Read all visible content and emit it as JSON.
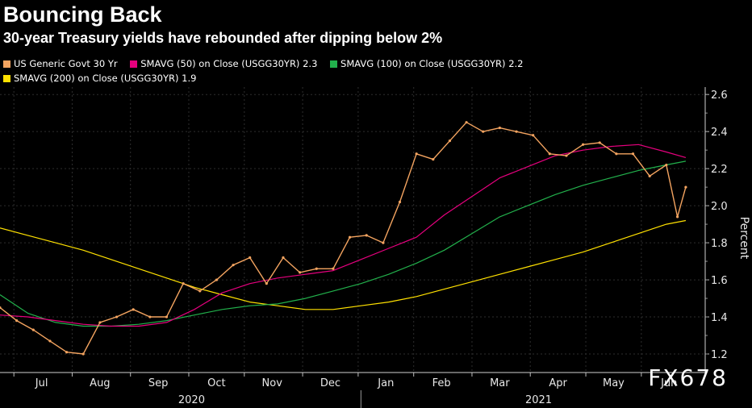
{
  "chart_data": {
    "type": "line",
    "title": "Bouncing Back",
    "subtitle": "30-year Treasury yields have rebounded after dipping below 2%",
    "ylabel": "Percent",
    "ylim": [
      1.1,
      2.64
    ],
    "yticks": [
      1.2,
      1.4,
      1.6,
      1.8,
      2.0,
      2.2,
      2.4,
      2.6
    ],
    "month_labels": [
      "Jul",
      "Aug",
      "Sep",
      "Oct",
      "Nov",
      "Dec",
      "Jan",
      "Feb",
      "Mar",
      "Apr",
      "May",
      "Jun"
    ],
    "month_index": [
      0.75,
      1.8,
      2.85,
      3.9,
      4.9,
      5.95,
      6.95,
      7.95,
      9.0,
      10.05,
      11.05,
      12.05
    ],
    "year_labels": [
      {
        "label": "2020",
        "x": 3.45
      },
      {
        "label": "2021",
        "x": 9.7
      }
    ],
    "year_divider_x": 6.5,
    "xlim": [
      0,
      12.7
    ],
    "series": [
      {
        "name": "US Generic Govt 30 Yr",
        "color": "#f4a460",
        "legend_value": "",
        "x": [
          0,
          0.3,
          0.6,
          0.9,
          1.2,
          1.5,
          1.8,
          2.1,
          2.4,
          2.7,
          3.0,
          3.3,
          3.6,
          3.9,
          4.2,
          4.5,
          4.8,
          5.1,
          5.4,
          5.7,
          6.0,
          6.3,
          6.6,
          6.9,
          7.2,
          7.5,
          7.8,
          8.1,
          8.4,
          8.7,
          9.0,
          9.3,
          9.6,
          9.9,
          10.2,
          10.5,
          10.8,
          11.1,
          11.4,
          11.7,
          12.0,
          12.2,
          12.35
        ],
        "values": [
          1.45,
          1.38,
          1.33,
          1.27,
          1.21,
          1.2,
          1.37,
          1.4,
          1.44,
          1.4,
          1.4,
          1.58,
          1.54,
          1.6,
          1.68,
          1.72,
          1.58,
          1.72,
          1.64,
          1.66,
          1.66,
          1.83,
          1.84,
          1.8,
          2.02,
          2.28,
          2.25,
          2.35,
          2.45,
          2.4,
          2.42,
          2.4,
          2.38,
          2.28,
          2.27,
          2.33,
          2.34,
          2.28,
          2.28,
          2.16,
          2.22,
          1.94,
          2.1
        ]
      },
      {
        "name": "SMAVG (50)  on Close (USGG30YR)",
        "color": "#e6007e",
        "legend_value": "2.3",
        "x": [
          0,
          0.5,
          1.0,
          1.5,
          2.0,
          2.5,
          3.0,
          3.5,
          4.0,
          4.5,
          5.0,
          5.5,
          6.0,
          6.5,
          7.0,
          7.5,
          8.0,
          8.5,
          9.0,
          9.5,
          10.0,
          10.5,
          11.0,
          11.5,
          12.0,
          12.35
        ],
        "values": [
          1.41,
          1.4,
          1.38,
          1.36,
          1.35,
          1.35,
          1.37,
          1.44,
          1.53,
          1.58,
          1.61,
          1.63,
          1.65,
          1.71,
          1.77,
          1.83,
          1.95,
          2.05,
          2.15,
          2.21,
          2.27,
          2.3,
          2.32,
          2.33,
          2.29,
          2.26
        ]
      },
      {
        "name": "SMAVG (100)  on Close (USGG30YR)",
        "color": "#22b14c",
        "legend_value": "2.2",
        "x": [
          0,
          0.5,
          1.0,
          1.5,
          2.0,
          2.5,
          3.0,
          3.5,
          4.0,
          4.5,
          5.0,
          5.5,
          6.0,
          6.5,
          7.0,
          7.5,
          8.0,
          8.5,
          9.0,
          9.5,
          10.0,
          10.5,
          11.0,
          11.5,
          12.0,
          12.35
        ],
        "values": [
          1.52,
          1.42,
          1.37,
          1.35,
          1.35,
          1.36,
          1.38,
          1.41,
          1.44,
          1.46,
          1.47,
          1.5,
          1.54,
          1.58,
          1.63,
          1.69,
          1.76,
          1.85,
          1.94,
          2.0,
          2.06,
          2.11,
          2.15,
          2.19,
          2.22,
          2.24
        ]
      },
      {
        "name": "SMAVG (200)  on Close (USGG30YR)",
        "color": "#ffe100",
        "legend_value": "1.9",
        "x": [
          0,
          0.5,
          1.0,
          1.5,
          2.0,
          2.5,
          3.0,
          3.5,
          4.0,
          4.5,
          5.0,
          5.5,
          6.0,
          6.5,
          7.0,
          7.5,
          8.0,
          8.5,
          9.0,
          9.5,
          10.0,
          10.5,
          11.0,
          11.5,
          12.0,
          12.35
        ],
        "values": [
          1.88,
          1.84,
          1.8,
          1.76,
          1.71,
          1.66,
          1.61,
          1.56,
          1.52,
          1.48,
          1.46,
          1.44,
          1.44,
          1.46,
          1.48,
          1.51,
          1.55,
          1.59,
          1.63,
          1.67,
          1.71,
          1.75,
          1.8,
          1.85,
          1.9,
          1.92
        ]
      }
    ]
  },
  "watermark": "FX678"
}
